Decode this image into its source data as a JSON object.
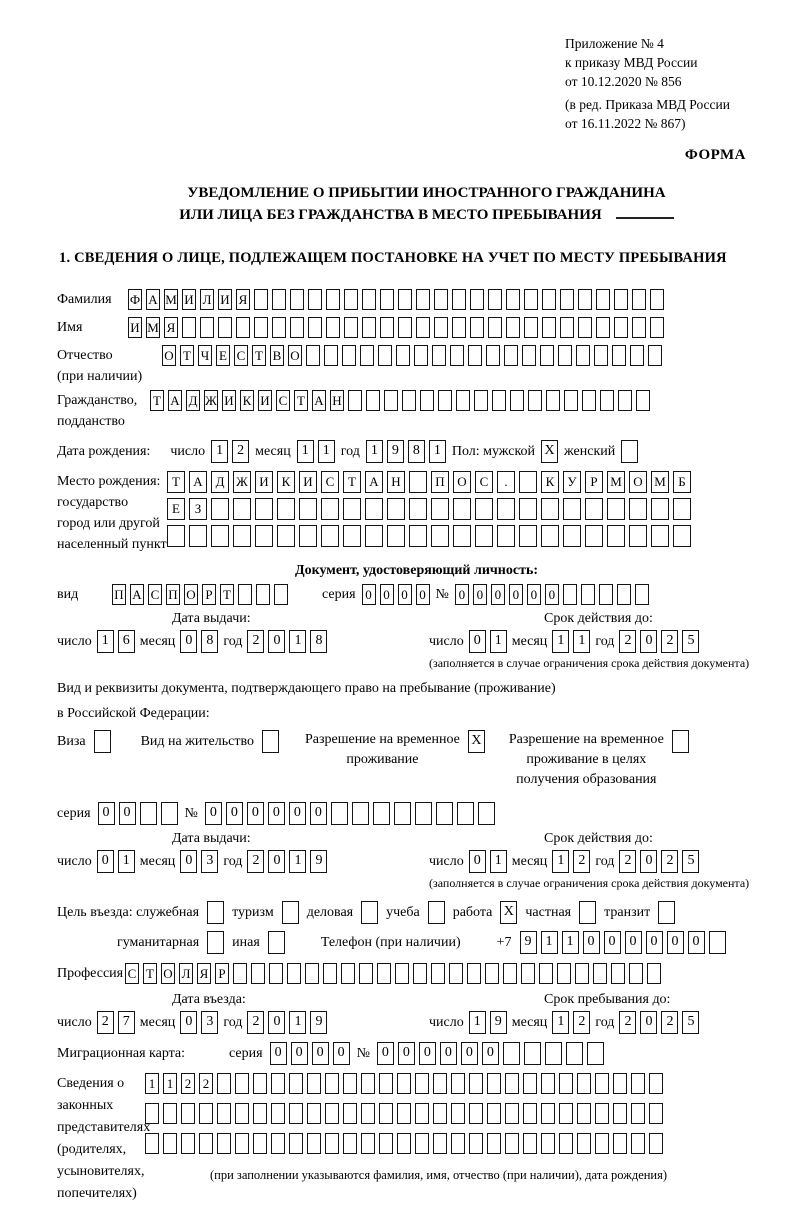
{
  "colors": {
    "background": "#ffffff",
    "text": "#000000",
    "cell_border": "#141414"
  },
  "header": {
    "lines": [
      "Приложение № 4",
      "к приказу МВД России",
      "от 10.12.2020 № 856",
      "(в ред. Приказа МВД России",
      "от 16.11.2022 № 867)"
    ],
    "form_label": "ФОРМА"
  },
  "title": {
    "line1": "УВЕДОМЛЕНИЕ О ПРИБЫТИИ ИНОСТРАННОГО ГРАЖДАНИНА",
    "line2": "ИЛИ ЛИЦА БЕЗ ГРАЖДАНСТВА В МЕСТО ПРЕБЫВАНИЯ"
  },
  "section1": {
    "heading": "1. СВЕДЕНИЯ О ЛИЦЕ, ПОДЛЕЖАЩЕМ ПОСТАНОВКЕ НА УЧЕТ ПО МЕСТУ ПРЕБЫВАНИЯ"
  },
  "person": {
    "surname": {
      "label": "Фамилия",
      "cells": {
        "chars": "ФАМИЛИЯ",
        "count": 30
      }
    },
    "firstname": {
      "label": "Имя",
      "cells": {
        "chars": "ИМЯ",
        "count": 30
      }
    },
    "patronymic": {
      "label": "Отчество",
      "label2": "(при наличии)",
      "cells": {
        "chars": "ОТЧЕСТВО",
        "count": 28
      }
    },
    "citizenship": {
      "label": "Гражданство,",
      "label2": "подданство",
      "cells": {
        "chars": "ТАДЖИКИСТАН",
        "count": 28
      }
    },
    "birth": {
      "label": "Дата рождения:",
      "day_label": "число",
      "day": {
        "chars": "12",
        "count": 2
      },
      "month_label": "месяц",
      "month": {
        "chars": "11",
        "count": 2
      },
      "year_label": "год",
      "year": {
        "chars": "1981",
        "count": 4
      },
      "sex_label": "Пол: мужской",
      "male": {
        "chars": "X",
        "count": 1
      },
      "female_label": "женский",
      "female": {
        "chars": "",
        "count": 1
      }
    },
    "birthplace": {
      "labels": [
        "Место рождения:",
        "государство",
        "город или другой",
        "населенный пункт"
      ],
      "row1": {
        "chars": "ТАДЖИКИСТАН ПОС. КУРМОМБ",
        "count": 24
      },
      "row2": {
        "chars": "ЕЗ",
        "count": 24
      },
      "row3": {
        "chars": "",
        "count": 24
      }
    }
  },
  "id_doc": {
    "heading": "Документ, удостоверяющий личность:",
    "type_label": "вид",
    "type": {
      "chars": "ПАСПОРТ",
      "count": 10
    },
    "series_label": "серия",
    "series": {
      "chars": "0000",
      "count": 4
    },
    "number_label": "№",
    "number": {
      "chars": "000000",
      "count": 11
    },
    "issue_label": "Дата выдачи:",
    "issue_day_label": "число",
    "issue_day": {
      "chars": "16",
      "count": 2
    },
    "issue_month_label": "месяц",
    "issue_month": {
      "chars": "08",
      "count": 2
    },
    "issue_year_label": "год",
    "issue_year": {
      "chars": "2018",
      "count": 4
    },
    "valid_label": "Срок действия до:",
    "valid_day_label": "число",
    "valid_day": {
      "chars": "01",
      "count": 2
    },
    "valid_month_label": "месяц",
    "valid_month": {
      "chars": "11",
      "count": 2
    },
    "valid_year_label": "год",
    "valid_year": {
      "chars": "2025",
      "count": 4
    },
    "note": "(заполняется в случае ограничения срока действия документа)"
  },
  "stay_doc": {
    "intro1": "Вид и реквизиты документа, подтверждающего право на пребывание (проживание)",
    "intro2": "в Российской Федерации:",
    "visa_label": "Виза",
    "visa": {
      "chars": "",
      "count": 1
    },
    "residence_label": "Вид на жительство",
    "residence": {
      "chars": "",
      "count": 1
    },
    "rvp_label1": "Разрешение на временное",
    "rvp_label2": "проживание",
    "rvp": {
      "chars": "X",
      "count": 1
    },
    "rvp_edu_label1": "Разрешение на временное",
    "rvp_edu_label2": "проживание в целях",
    "rvp_edu_label3": "получения образования",
    "rvp_edu": {
      "chars": "",
      "count": 1
    },
    "series_label": "серия",
    "series": {
      "chars": "00",
      "count": 4
    },
    "number_label": "№",
    "number": {
      "chars": "000000",
      "count": 14
    },
    "issue_label": "Дата выдачи:",
    "issue_day_label": "число",
    "issue_day": {
      "chars": "01",
      "count": 2
    },
    "issue_month_label": "месяц",
    "issue_month": {
      "chars": "03",
      "count": 2
    },
    "issue_year_label": "год",
    "issue_year": {
      "chars": "2019",
      "count": 4
    },
    "valid_label": "Срок действия до:",
    "valid_day_label": "число",
    "valid_day": {
      "chars": "01",
      "count": 2
    },
    "valid_month_label": "месяц",
    "valid_month": {
      "chars": "12",
      "count": 2
    },
    "valid_year_label": "год",
    "valid_year": {
      "chars": "2025",
      "count": 4
    },
    "note": "(заполняется в случае ограничения срока действия документа)"
  },
  "visit": {
    "purpose_label": "Цель въезда: служебная",
    "opt_tourism": "туризм",
    "tourism": {
      "chars": "",
      "count": 1
    },
    "sluzhebnaya": {
      "chars": "",
      "count": 1
    },
    "opt_business": "деловая",
    "business": {
      "chars": "",
      "count": 1
    },
    "opt_study": "учеба",
    "study": {
      "chars": "",
      "count": 1
    },
    "opt_work": "работа",
    "work": {
      "chars": "X",
      "count": 1
    },
    "opt_private": "частная",
    "private": {
      "chars": "",
      "count": 1
    },
    "opt_transit": "транзит",
    "transit": {
      "chars": "",
      "count": 1
    },
    "opt_humanitarian": "гуманитарная",
    "humanitarian": {
      "chars": "",
      "count": 1
    },
    "opt_other": "иная",
    "other": {
      "chars": "",
      "count": 1
    },
    "phone_label": "Телефон (при наличии)",
    "phone_prefix": "+7",
    "phone": {
      "chars": "911000000",
      "count": 10
    },
    "profession_label": "Профессия",
    "profession": {
      "chars": "СТОЛЯР",
      "count": 30
    },
    "entry_label": "Дата въезда:",
    "entry_day_label": "число",
    "entry_day": {
      "chars": "27",
      "count": 2
    },
    "entry_month_label": "месяц",
    "entry_month": {
      "chars": "03",
      "count": 2
    },
    "entry_year_label": "год",
    "entry_year": {
      "chars": "2019",
      "count": 4
    },
    "until_label": "Срок пребывания до:",
    "until_day_label": "число",
    "until_day": {
      "chars": "19",
      "count": 2
    },
    "until_month_label": "месяц",
    "until_month": {
      "chars": "12",
      "count": 2
    },
    "until_year_label": "год",
    "until_year": {
      "chars": "2025",
      "count": 4
    }
  },
  "migration_card": {
    "label": "Миграционная карта:",
    "series_label": "серия",
    "series": {
      "chars": "0000",
      "count": 4
    },
    "number_label": "№",
    "number": {
      "chars": "000000",
      "count": 11
    }
  },
  "representatives": {
    "labels": [
      "Сведения о",
      "законных",
      "представителях",
      "(родителях,",
      "усыновителях,",
      "попечителях)"
    ],
    "row1": {
      "chars": "1122",
      "count": 29
    },
    "row2": {
      "chars": "",
      "count": 29
    },
    "row3": {
      "chars": "",
      "count": 29
    },
    "caption": "(при заполнении указываются фамилия, имя, отчество (при наличии), дата рождения)"
  }
}
